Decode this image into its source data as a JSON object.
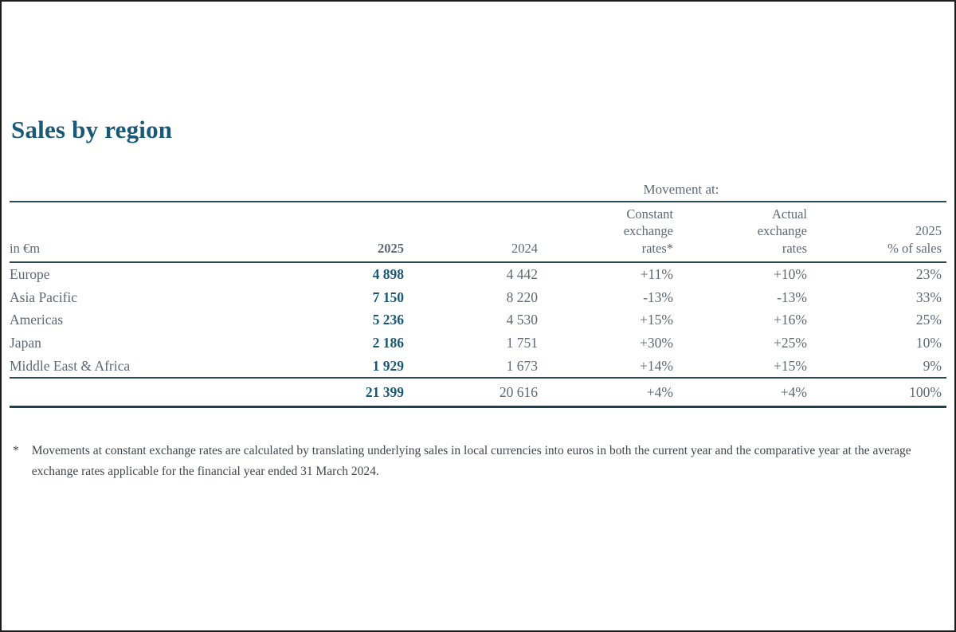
{
  "page": {
    "title": "Sales by region"
  },
  "table": {
    "group_header": "Movement at:",
    "columns": {
      "unit": "in €m",
      "year_2025": "2025",
      "year_2024": "2024",
      "constant_rates": "Constant\nexchange\nrates*",
      "actual_rates": "Actual\nexchange\nrates",
      "pct_of_sales": "2025\n% of sales"
    },
    "rows": [
      {
        "region": "Europe",
        "y2025": "4 898",
        "y2024": "4 442",
        "constant": "+11%",
        "actual": "+10%",
        "pct": "23%"
      },
      {
        "region": "Asia Pacific",
        "y2025": "7 150",
        "y2024": "8 220",
        "constant": "-13%",
        "actual": "-13%",
        "pct": "33%"
      },
      {
        "region": "Americas",
        "y2025": "5 236",
        "y2024": "4 530",
        "constant": "+15%",
        "actual": "+16%",
        "pct": "25%"
      },
      {
        "region": "Japan",
        "y2025": "2 186",
        "y2024": "1 751",
        "constant": "+30%",
        "actual": "+25%",
        "pct": "10%"
      },
      {
        "region": "Middle East & Africa",
        "y2025": "1 929",
        "y2024": "1 673",
        "constant": "+14%",
        "actual": "+15%",
        "pct": "9%"
      }
    ],
    "total": {
      "y2025": "21 399",
      "y2024": "20 616",
      "constant": "+4%",
      "actual": "+4%",
      "pct": "100%"
    }
  },
  "footnote": {
    "marker": "*",
    "text": "Movements at constant exchange rates are calculated by translating underlying sales in local currencies into euros in both the current year and the comparative year at the average exchange rates applicable for the financial year ended 31 March 2024."
  },
  "colors": {
    "accent_blue": "#175978",
    "rule_dark": "#2d4b59",
    "muted_gray": "#5e6974"
  }
}
